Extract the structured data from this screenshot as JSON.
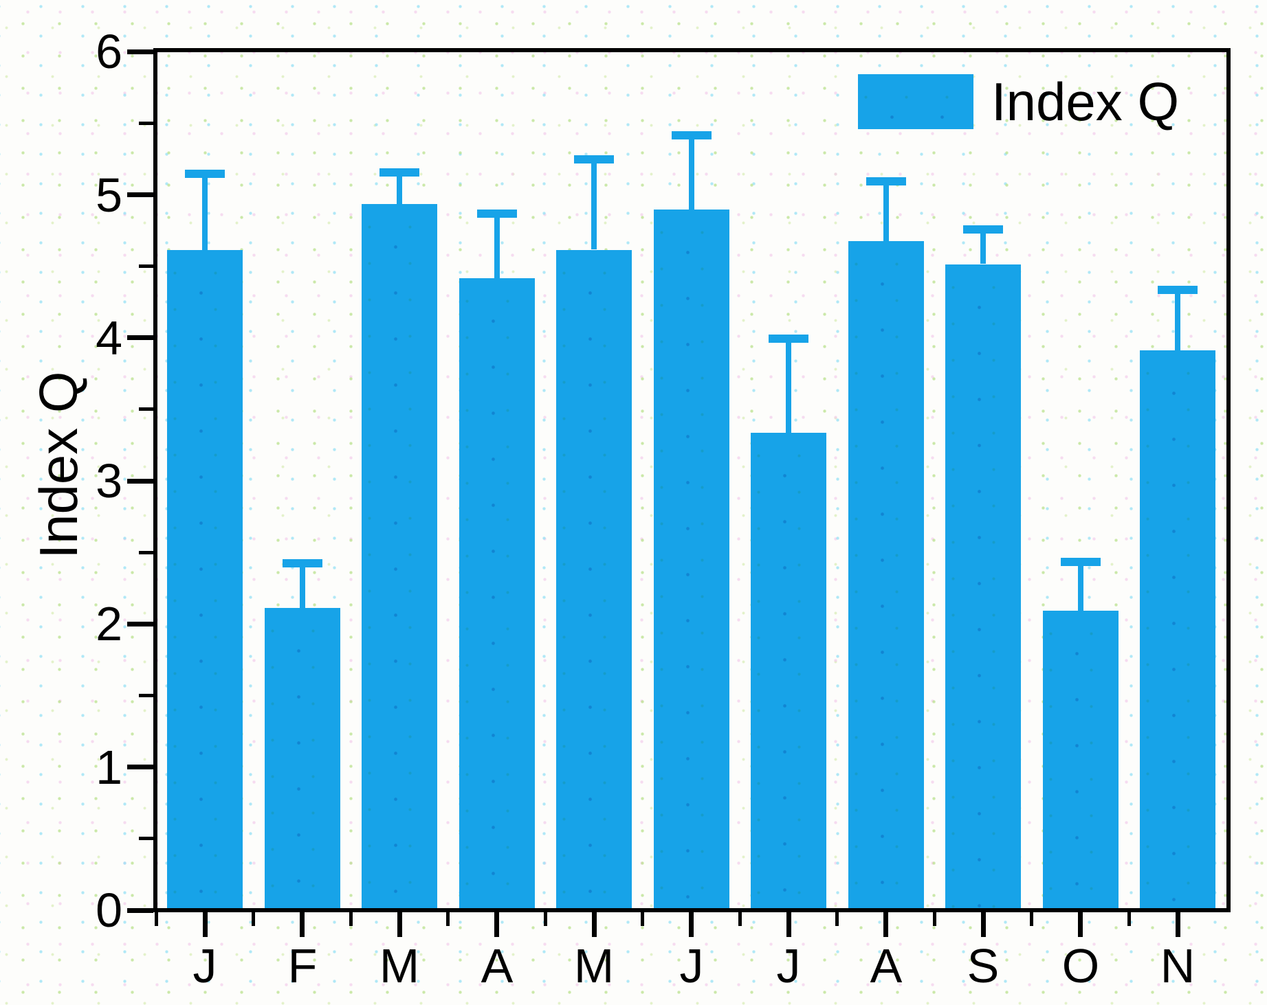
{
  "chart_data": {
    "type": "bar",
    "title": "",
    "categories": [
      "J",
      "F",
      "M",
      "A",
      "M",
      "J",
      "J",
      "A",
      "S",
      "O",
      "N"
    ],
    "series": [
      {
        "name": "Index Q",
        "values": [
          4.6,
          2.1,
          4.92,
          4.4,
          4.6,
          4.88,
          3.32,
          4.66,
          4.5,
          2.08,
          3.9
        ],
        "errors_plus": [
          0.56,
          0.34,
          0.25,
          0.48,
          0.66,
          0.55,
          0.69,
          0.45,
          0.27,
          0.37,
          0.45
        ]
      }
    ],
    "xlabel": "",
    "ylabel": "Index Q",
    "ylim": [
      0,
      6
    ],
    "y_major_ticks": [
      0,
      1,
      2,
      3,
      4,
      5,
      6
    ],
    "y_minor_step": 0.5,
    "grid": "off",
    "legend": {
      "position": "top-right",
      "entries": [
        "Index Q"
      ]
    },
    "colors": {
      "bar_fill": "#17a3e8",
      "error_bar": "#17a3e8",
      "axis": "#000000",
      "background": "#fdfdfb"
    }
  }
}
